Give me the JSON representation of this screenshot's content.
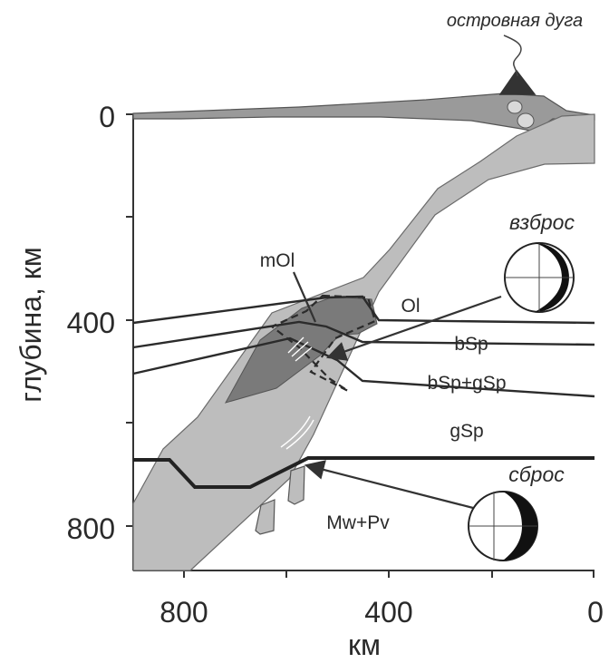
{
  "axis": {
    "y_label": "глубина, км",
    "x_label": "км",
    "y_ticks": [
      "0",
      "400",
      "800"
    ],
    "x_ticks": [
      "800",
      "400",
      "0"
    ]
  },
  "labels": {
    "island_arc": "островная дуга",
    "thrust": "взброс",
    "normal_fault": "сброс",
    "metastable_olivine": "mOl",
    "olivine": "Ol",
    "b_spinel": "bSp",
    "b_g_spinel": "bSp+gSp",
    "g_spinel": "gSp",
    "lower_mantle": "Mw+Pv"
  },
  "colors": {
    "slab": "#bdbdbd",
    "metastable_wedge": "#7a7a7a",
    "arc_crust": "#9a9a9a",
    "boundary_line": "#2b2b2b",
    "frame": "#333333"
  }
}
